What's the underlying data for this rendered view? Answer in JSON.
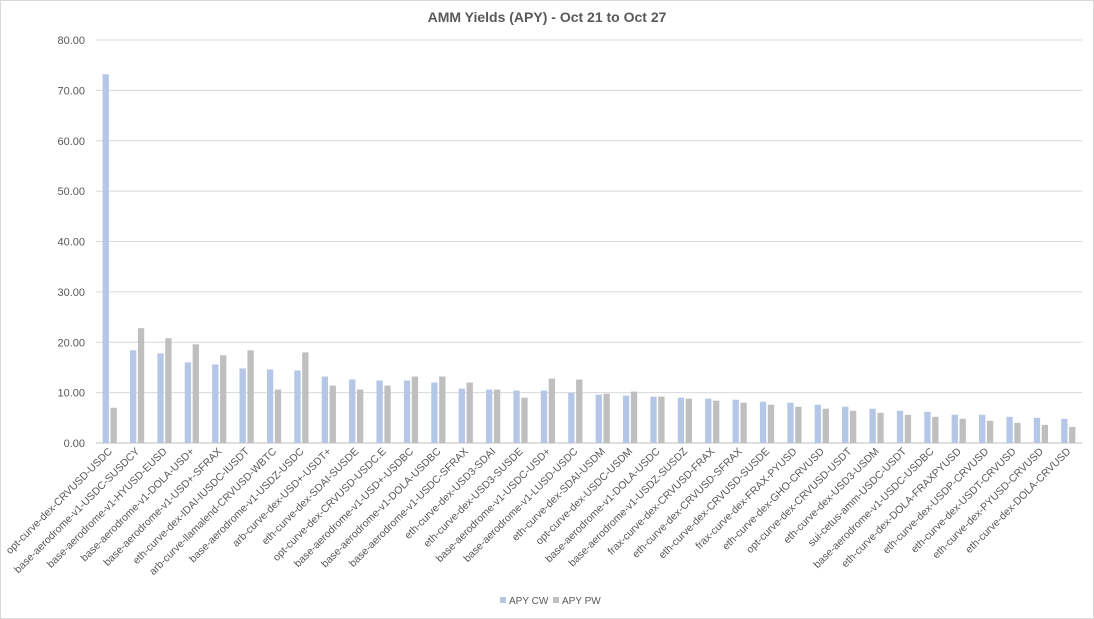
{
  "chart_data": {
    "type": "bar",
    "title": "AMM Yields (APY) - Oct 21 to Oct 27",
    "xlabel": "",
    "ylabel": "",
    "ylim": [
      0,
      80
    ],
    "yticks": [
      "0.00",
      "10.00",
      "20.00",
      "30.00",
      "40.00",
      "50.00",
      "60.00",
      "70.00",
      "80.00"
    ],
    "grid": true,
    "legend_position": "bottom",
    "categories": [
      "opt-curve-dex-CRVUSD-USDC",
      "base-aerodrome-v1-USDC-SUSDCY",
      "base-aerodrome-v1-HYUSD-EUSD",
      "base-aerodrome-v1-DOLA-USD+",
      "base-aerodrome-v1-USD+-SFRAX",
      "eth-curve-dex-IDAI-IUSDC-IUSDT",
      "arb-curve-llamalend-CRVUSD-WBTC",
      "base-aerodrome-v1-USDZ-USDC",
      "arb-curve-dex-USD+-USDT+",
      "eth-curve-dex-SDAI-SUSDE",
      "opt-curve-dex-CRVUSD-USDC.E",
      "base-aerodrome-v1-USD+-USDBC",
      "base-aerodrome-v1-DOLA-USDBC",
      "base-aerodrome-v1-USDC-SFRAX",
      "eth-curve-dex-USD3-SDAI",
      "eth-curve-dex-USD3-SUSDE",
      "base-aerodrome-v1-USDC-USD+",
      "base-aerodrome-v1-LUSD-USDC",
      "eth-curve-dex-SDAI-USDM",
      "opt-curve-dex-USDC-USDM",
      "base-aerodrome-v1-DOLA-USDC",
      "base-aerodrome-v1-USDZ-SUSDZ",
      "frax-curve-dex-CRVUSD-FRAX",
      "eth-curve-dex-CRVUSD-SFRAX",
      "eth-curve-dex-CRVUSD-SUSDE",
      "frax-curve-dex-FRAX-PYUSD",
      "eth-curve-dex-GHO-CRVUSD",
      "opt-curve-dex-CRVUSD-USDT",
      "eth-curve-dex-USD3-USDM",
      "sui-cetus-amm-USDC-USDT",
      "base-aerodrome-v1-USDC-USDBC",
      "eth-curve-dex-DOLA-FRAXPYUSD",
      "eth-curve-dex-USDP-CRVUSD",
      "eth-curve-dex-USDT-CRVUSD",
      "eth-curve-dex-PYUSD-CRVUSD",
      "eth-curve-dex-DOLA-CRVUSD"
    ],
    "series": [
      {
        "name": "APY CW",
        "color": "#b4c7e7",
        "values": [
          73.2,
          18.4,
          17.8,
          16.0,
          15.6,
          14.8,
          14.6,
          14.4,
          13.2,
          12.6,
          12.4,
          12.4,
          12.0,
          10.8,
          10.6,
          10.4,
          10.4,
          10.0,
          9.6,
          9.4,
          9.2,
          9.0,
          8.8,
          8.6,
          8.2,
          8.0,
          7.6,
          7.2,
          6.8,
          6.4,
          6.2,
          5.6,
          5.6,
          5.2,
          5.0,
          4.8
        ]
      },
      {
        "name": "APY PW",
        "color": "#bfbfbf",
        "values": [
          7.0,
          22.8,
          20.8,
          19.6,
          17.4,
          18.4,
          10.6,
          18.0,
          11.4,
          10.6,
          11.4,
          13.2,
          13.2,
          12.0,
          10.6,
          9.0,
          12.8,
          12.6,
          9.8,
          10.2,
          9.2,
          8.8,
          8.4,
          8.0,
          7.6,
          7.2,
          6.8,
          6.4,
          6.0,
          5.6,
          5.2,
          4.8,
          4.4,
          4.0,
          3.6,
          3.2
        ]
      }
    ]
  }
}
